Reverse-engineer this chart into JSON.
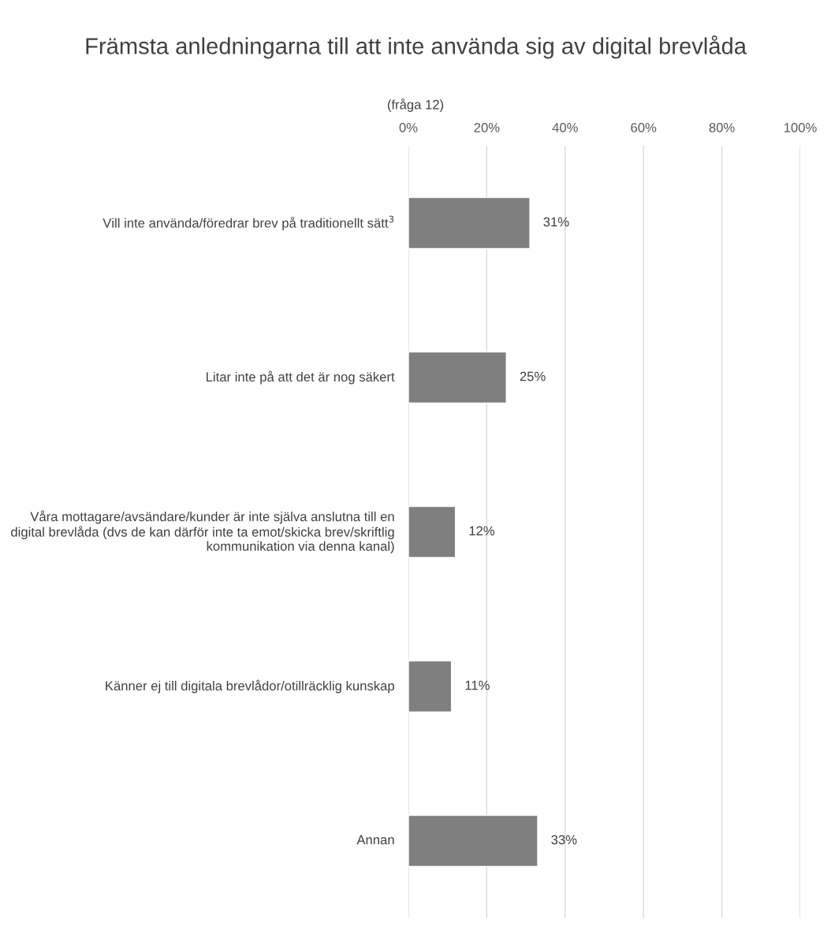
{
  "chart_data": {
    "type": "bar",
    "orientation": "horizontal",
    "title": "Främsta anledningarna till att inte använda sig av digital brevlåda",
    "subtitle": "(fråga 12)",
    "categories": [
      "Vill inte använda/föredrar brev på traditionellt sätt$^{3}$",
      "Litar inte på att det är nog säkert",
      "Våra mottagare/avsändare/kunder är inte själva anslutna till en digital brevlåda (dvs de kan därför inte ta emot/skicka brev/skriftlig kommunikation via denna kanal)",
      "Känner ej till digitala brevlådor/otillräcklig kunskap",
      "Annan"
    ],
    "values": [
      31,
      25,
      12,
      11,
      33
    ],
    "color": "#7f7f7f",
    "value_labels": [
      "31%",
      "25%",
      "12%",
      "11%",
      "33%"
    ],
    "xlim": [
      0,
      100
    ],
    "xticks": [
      {
        "value": 0,
        "label": "0%"
      },
      {
        "value": 20,
        "label": "20%"
      },
      {
        "value": 40,
        "label": "40%"
      },
      {
        "value": 60,
        "label": "60%"
      },
      {
        "value": 80,
        "label": "80%"
      },
      {
        "value": 100,
        "label": "100%"
      }
    ],
    "grid": "x"
  }
}
